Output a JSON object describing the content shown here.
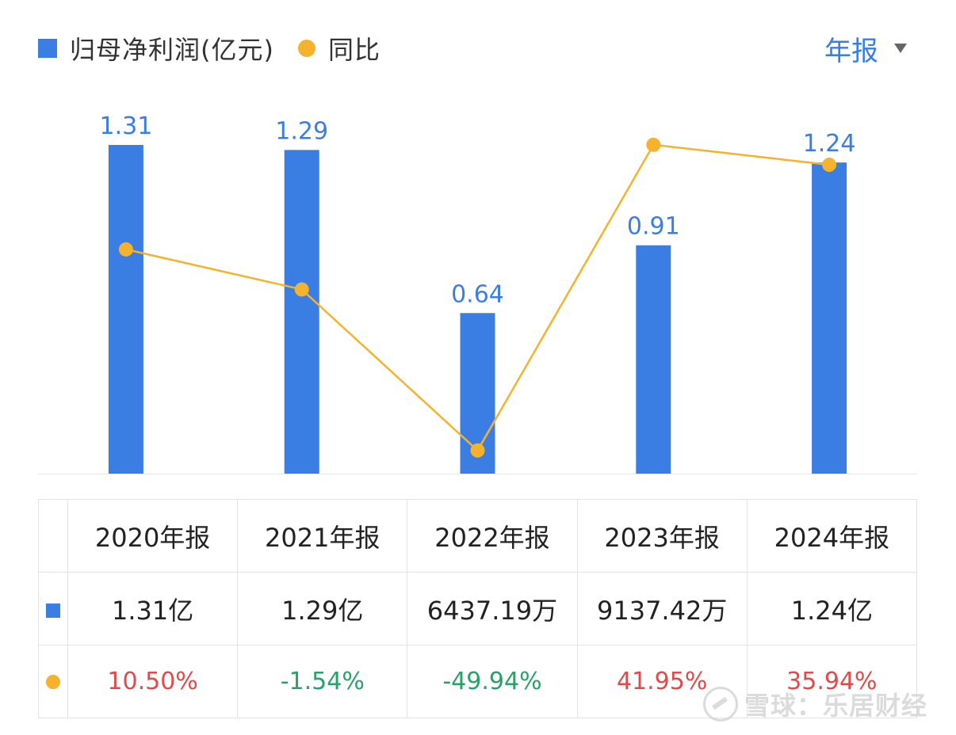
{
  "legend": {
    "profit_label": "归母净利润(亿元)",
    "yoy_label": "同比"
  },
  "period_select": {
    "label": "年报"
  },
  "colors": {
    "bar": "#3a7ee4",
    "line": "#f5b22d",
    "positive": "#e04a4a",
    "negative": "#2aa06a"
  },
  "chart_data": {
    "type": "bar",
    "categories": [
      "2020年报",
      "2021年报",
      "2022年报",
      "2023年报",
      "2024年报"
    ],
    "series": [
      {
        "values": [
          1.31,
          1.29,
          0.64,
          0.91,
          1.24
        ],
        "type": "bar",
        "labels": [
          "1.31",
          "1.29",
          "0.64",
          "0.91",
          "1.24"
        ]
      },
      {
        "values": [
          10.5,
          -1.54,
          -49.94,
          41.95,
          35.94
        ],
        "type": "line"
      }
    ],
    "bar_ylim": [
      0,
      1.31
    ],
    "line_ylim": [
      -55,
      70
    ],
    "grid": false,
    "legend_position": "top-left"
  },
  "table": {
    "headers": [
      "2020年报",
      "2021年报",
      "2022年报",
      "2023年报",
      "2024年报"
    ],
    "profit_row": [
      "1.31亿",
      "1.29亿",
      "6437.19万",
      "9137.42万",
      "1.24亿"
    ],
    "yoy_row": [
      "10.50%",
      "-1.54%",
      "-49.94%",
      "41.95%",
      "35.94%"
    ]
  },
  "watermark": {
    "text": "雪球：乐居财经"
  }
}
